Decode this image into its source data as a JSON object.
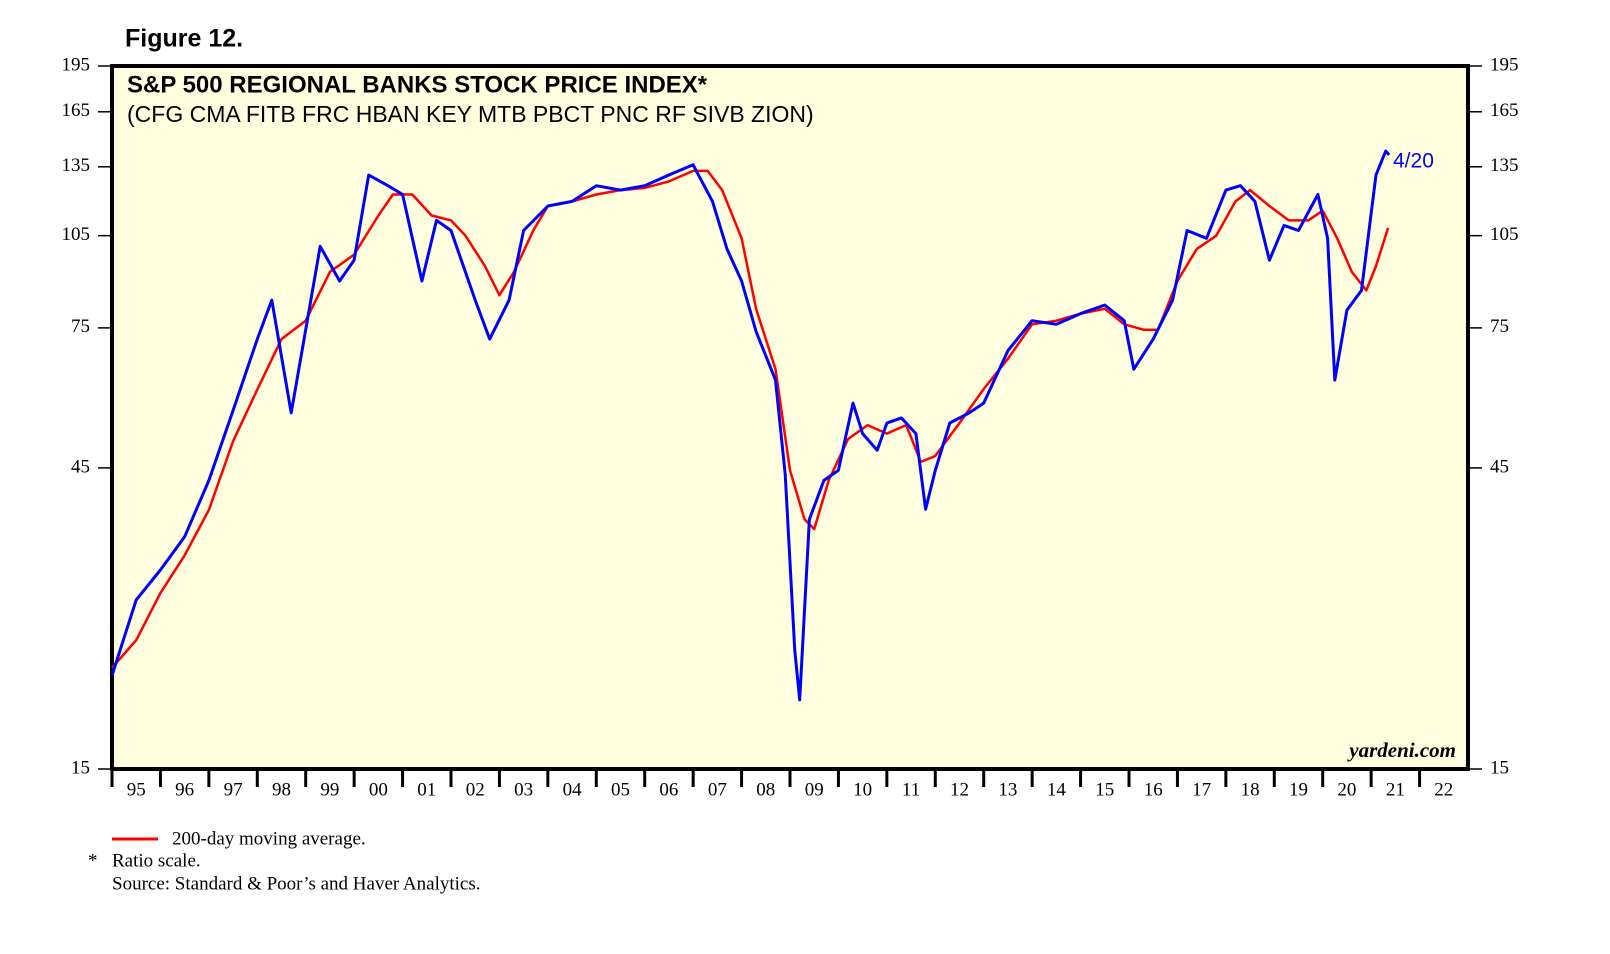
{
  "chart_data": {
    "type": "line",
    "figure_label": "Figure 12.",
    "title": "S&P 500 REGIONAL BANKS STOCK PRICE INDEX*",
    "subtitle": "(CFG CMA FITB FRC HBAN KEY MTB PBCT PNC RF SIVB ZION)",
    "annotation": "4/20",
    "watermark": "yardeni.com",
    "notes": [
      "*",
      "Ratio scale.",
      "Source: Standard & Poor’s and Haver Analytics."
    ],
    "log_scale": true,
    "background": "#ffffe0",
    "xlim": [
      1995,
      2023
    ],
    "ylim": [
      15,
      195
    ],
    "yticks": [
      15,
      45,
      75,
      105,
      135,
      165,
      195
    ],
    "xticks": [
      {
        "value": 1995,
        "label": "95"
      },
      {
        "value": 1996,
        "label": "96"
      },
      {
        "value": 1997,
        "label": "97"
      },
      {
        "value": 1998,
        "label": "98"
      },
      {
        "value": 1999,
        "label": "99"
      },
      {
        "value": 2000,
        "label": "00"
      },
      {
        "value": 2001,
        "label": "01"
      },
      {
        "value": 2002,
        "label": "02"
      },
      {
        "value": 2003,
        "label": "03"
      },
      {
        "value": 2004,
        "label": "04"
      },
      {
        "value": 2005,
        "label": "05"
      },
      {
        "value": 2006,
        "label": "06"
      },
      {
        "value": 2007,
        "label": "07"
      },
      {
        "value": 2008,
        "label": "08"
      },
      {
        "value": 2009,
        "label": "09"
      },
      {
        "value": 2010,
        "label": "10"
      },
      {
        "value": 2011,
        "label": "11"
      },
      {
        "value": 2012,
        "label": "12"
      },
      {
        "value": 2013,
        "label": "13"
      },
      {
        "value": 2014,
        "label": "14"
      },
      {
        "value": 2015,
        "label": "15"
      },
      {
        "value": 2016,
        "label": "16"
      },
      {
        "value": 2017,
        "label": "17"
      },
      {
        "value": 2018,
        "label": "18"
      },
      {
        "value": 2019,
        "label": "19"
      },
      {
        "value": 2020,
        "label": "20"
      },
      {
        "value": 2021,
        "label": "21"
      },
      {
        "value": 2022,
        "label": "22"
      }
    ],
    "series": [
      {
        "color": "#0000ff",
        "x": [
          1995.0,
          1995.5,
          1996.0,
          1996.5,
          1997.0,
          1997.5,
          1998.0,
          1998.3,
          1998.7,
          1999.0,
          1999.3,
          1999.7,
          2000.0,
          2000.3,
          2000.7,
          2001.0,
          2001.4,
          2001.7,
          2002.0,
          2002.5,
          2002.8,
          2003.2,
          2003.5,
          2004.0,
          2004.5,
          2005.0,
          2005.5,
          2006.0,
          2006.5,
          2007.0,
          2007.4,
          2007.7,
          2008.0,
          2008.3,
          2008.7,
          2008.9,
          2009.1,
          2009.2,
          2009.4,
          2009.7,
          2010.0,
          2010.3,
          2010.5,
          2010.8,
          2011.0,
          2011.3,
          2011.6,
          2011.8,
          2012.0,
          2012.3,
          2012.7,
          2013.0,
          2013.5,
          2014.0,
          2014.5,
          2015.0,
          2015.5,
          2015.9,
          2016.1,
          2016.5,
          2016.9,
          2017.2,
          2017.6,
          2018.0,
          2018.3,
          2018.6,
          2018.9,
          2019.2,
          2019.5,
          2019.9,
          2020.1,
          2020.25,
          2020.5,
          2020.8,
          2020.95,
          2021.1,
          2021.3,
          2021.37
        ],
        "values": [
          21.1,
          27.8,
          31,
          35,
          43,
          55.5,
          72,
          83,
          55,
          74.5,
          101,
          89,
          96,
          131,
          126,
          122,
          89,
          111,
          107,
          83,
          72,
          83,
          107,
          117,
          119,
          126,
          124,
          126,
          131,
          136,
          119,
          100,
          89,
          74,
          62,
          44,
          23.1,
          19.3,
          37.3,
          43,
          44.6,
          57,
          51,
          48,
          53,
          54,
          51,
          38.7,
          44.6,
          53,
          55,
          57,
          69,
          77,
          76,
          79,
          81.5,
          77,
          64.5,
          72,
          83,
          107,
          104,
          124,
          126,
          119,
          96,
          109,
          107,
          122,
          104,
          62,
          80,
          86,
          106,
          131,
          143,
          141
        ]
      },
      {
        "name": "200-day moving average.",
        "color": "#ff0000",
        "x": [
          1995.0,
          1995.5,
          1996.0,
          1996.5,
          1997.0,
          1997.5,
          1998.0,
          1998.5,
          1999.0,
          1999.5,
          2000.0,
          2000.5,
          2000.8,
          2001.2,
          2001.6,
          2002.0,
          2002.3,
          2002.7,
          2003.0,
          2003.3,
          2003.7,
          2004.0,
          2004.5,
          2005.0,
          2005.5,
          2006.0,
          2006.5,
          2007.0,
          2007.3,
          2007.6,
          2008.0,
          2008.3,
          2008.7,
          2009.0,
          2009.3,
          2009.5,
          2009.8,
          2010.2,
          2010.6,
          2011.0,
          2011.4,
          2011.7,
          2012.0,
          2012.5,
          2013.0,
          2013.5,
          2014.0,
          2014.5,
          2015.0,
          2015.5,
          2015.9,
          2016.3,
          2016.6,
          2017.0,
          2017.4,
          2017.8,
          2018.2,
          2018.5,
          2018.9,
          2019.3,
          2019.7,
          2020.0,
          2020.3,
          2020.6,
          2020.9,
          2021.1,
          2021.35
        ],
        "values": [
          21.7,
          24,
          28.5,
          32.7,
          38.6,
          49.6,
          59.9,
          72,
          77,
          92,
          98,
          113,
          122,
          122,
          113,
          111,
          105,
          94,
          84.5,
          92,
          107,
          117,
          119,
          122,
          124,
          125,
          128,
          133,
          133,
          124,
          104,
          80.4,
          64.5,
          44.6,
          37.3,
          36,
          43,
          50,
          52.6,
          51,
          52.6,
          46,
          47,
          53,
          60,
          67,
          76,
          77,
          79,
          80.4,
          76,
          74.5,
          74.5,
          89,
          100,
          105,
          119,
          124,
          117,
          111,
          111,
          115,
          104,
          92,
          86,
          94,
          108
        ]
      }
    ]
  }
}
